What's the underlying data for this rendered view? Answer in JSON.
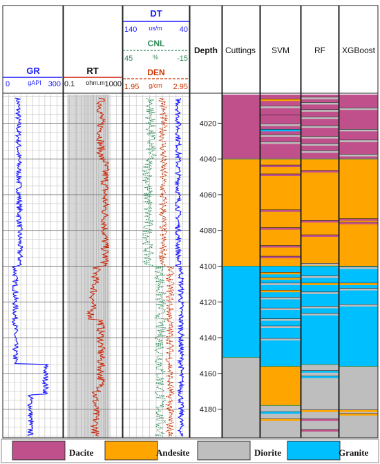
{
  "chart_data": {
    "type": "well-log-lithology",
    "depth_axis": {
      "label": "Depth",
      "ticks": [
        4020,
        4040,
        4060,
        4080,
        4100,
        4120,
        4140,
        4160,
        4180
      ],
      "range": [
        4004,
        4196
      ]
    },
    "tracks": {
      "gr": {
        "name": "GR",
        "unit": "gAPI",
        "min": "0",
        "max": "300",
        "color": "#1a1aff"
      },
      "rt": {
        "name": "RT",
        "unit": "ohm.m",
        "min": "0.1",
        "max": "1000",
        "color": "#cc1f00",
        "scale": "log"
      },
      "dt": {
        "name": "DT",
        "unit": "us/m",
        "left": "140",
        "right": "40",
        "color": "#1a1aff"
      },
      "cnl": {
        "name": "CNL",
        "unit": "%",
        "left": "45",
        "right": "-15",
        "color": "#2e8b57"
      },
      "den": {
        "name": "DEN",
        "unit": "g/cm",
        "left": "1.95",
        "right": "2.95",
        "color": "#cc3300"
      }
    },
    "columns": [
      "Cuttings",
      "SVM",
      "RF",
      "XGBoost"
    ],
    "lithology_colors": {
      "Dacite": "#c0508b",
      "Andesite": "#ffa500",
      "Diorite": "#bebebe",
      "Granite": "#00bfff"
    },
    "legend": [
      "Dacite",
      "Andesite",
      "Diorite",
      "Granite"
    ],
    "intervals": {
      "Cuttings": [
        [
          4004,
          4040,
          "Dacite"
        ],
        [
          4040,
          4100,
          "Andesite"
        ],
        [
          4100,
          4151,
          "Granite"
        ],
        [
          4151,
          4196,
          "Diorite"
        ]
      ],
      "SVM": [
        [
          4004,
          4040,
          "Dacite"
        ],
        [
          4040,
          4100,
          "Andesite"
        ],
        [
          4100,
          4156,
          "Granite"
        ],
        [
          4156,
          4178,
          "Andesite"
        ],
        [
          4178,
          4196,
          "Diorite"
        ]
      ],
      "RF": [
        [
          4004,
          4040,
          "Dacite"
        ],
        [
          4040,
          4100,
          "Andesite"
        ],
        [
          4100,
          4155,
          "Granite"
        ],
        [
          4155,
          4196,
          "Diorite"
        ]
      ],
      "XGBoost": [
        [
          4004,
          4040,
          "Dacite"
        ],
        [
          4040,
          4100,
          "Andesite"
        ],
        [
          4100,
          4156,
          "Granite"
        ],
        [
          4156,
          4196,
          "Diorite"
        ]
      ]
    },
    "thin_beds": {
      "SVM": [
        [
          4007,
          "Andesite"
        ],
        [
          4011,
          "Diorite"
        ],
        [
          4016,
          "Dacite"
        ],
        [
          4021,
          "Diorite"
        ],
        [
          4024,
          "Granite"
        ],
        [
          4027,
          "Diorite"
        ],
        [
          4031,
          "Diorite"
        ],
        [
          4044,
          "Dacite"
        ],
        [
          4049,
          "Dacite"
        ],
        [
          4069,
          "Dacite"
        ],
        [
          4079,
          "Dacite"
        ],
        [
          4089,
          "Dacite"
        ],
        [
          4095,
          "Dacite"
        ],
        [
          4104,
          "Andesite"
        ],
        [
          4107,
          "Andesite"
        ],
        [
          4110,
          "Diorite"
        ],
        [
          4114,
          "Andesite"
        ],
        [
          4118,
          "Diorite"
        ],
        [
          4124,
          "Diorite"
        ],
        [
          4130,
          "Diorite"
        ],
        [
          4134,
          "Diorite"
        ],
        [
          4141,
          "Diorite"
        ],
        [
          4182,
          "Granite"
        ],
        [
          4186,
          "Andesite"
        ]
      ],
      "RF": [
        [
          4006,
          "Diorite"
        ],
        [
          4009,
          "Diorite"
        ],
        [
          4013,
          "Diorite"
        ],
        [
          4017,
          "Diorite"
        ],
        [
          4022,
          "Diorite"
        ],
        [
          4028,
          "Diorite"
        ],
        [
          4032,
          "Diorite"
        ],
        [
          4036,
          "Diorite"
        ],
        [
          4047,
          "Dacite"
        ],
        [
          4075,
          "Dacite"
        ],
        [
          4083,
          "Dacite"
        ],
        [
          4099,
          "Diorite"
        ],
        [
          4106,
          "Diorite"
        ],
        [
          4110,
          "Andesite"
        ],
        [
          4115,
          "Diorite"
        ],
        [
          4123,
          "Diorite"
        ],
        [
          4127,
          "Diorite"
        ],
        [
          4159,
          "Granite"
        ],
        [
          4162,
          "Granite"
        ],
        [
          4181,
          "Andesite"
        ],
        [
          4186,
          "Dacite"
        ],
        [
          4192,
          "Dacite"
        ]
      ],
      "XGBoost": [
        [
          4012,
          "Diorite"
        ],
        [
          4024,
          "Diorite"
        ],
        [
          4030,
          "Diorite"
        ],
        [
          4038,
          "Diorite"
        ],
        [
          4074,
          "Dacite"
        ],
        [
          4076,
          "Dacite"
        ],
        [
          4101,
          "Diorite"
        ],
        [
          4110,
          "Andesite"
        ],
        [
          4113,
          "Diorite"
        ],
        [
          4122,
          "Diorite"
        ],
        [
          4181,
          "Andesite"
        ],
        [
          4183,
          "Andesite"
        ]
      ]
    }
  }
}
